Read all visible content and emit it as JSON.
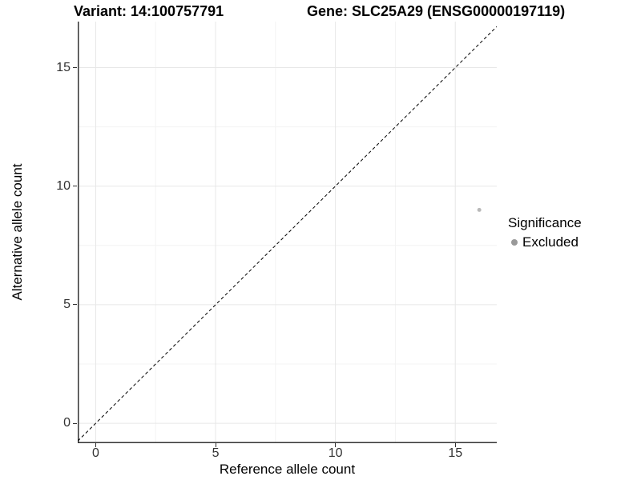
{
  "titles": {
    "variant": "Variant: 14:100757791",
    "gene": "Gene: SLC25A29 (ENSG00000197119)"
  },
  "legend": {
    "title": "Significance",
    "items": [
      {
        "label": "Excluded",
        "color": "#999999"
      }
    ]
  },
  "chart_data": {
    "type": "scatter",
    "title": "Variant: 14:100757791 — Gene: SLC25A29 (ENSG00000197119)",
    "xlabel": "Reference allele count",
    "ylabel": "Alternative allele count",
    "xlim": [
      -0.75,
      16.73
    ],
    "ylim": [
      -0.84,
      16.94
    ],
    "x_ticks": [
      0,
      5,
      10,
      15
    ],
    "y_ticks": [
      0,
      5,
      10,
      15
    ],
    "x_minor_ticks": [
      2.5,
      7.5,
      12.5
    ],
    "y_minor_ticks": [
      2.5,
      7.5,
      12.5
    ],
    "grid": true,
    "legend_position": "right",
    "series": [
      {
        "name": "Excluded",
        "color": "#b9b9b9",
        "points": [
          {
            "x": 16,
            "y": 9
          }
        ]
      }
    ],
    "reference_line": {
      "kind": "identity",
      "slope": 1,
      "intercept": 0,
      "style": "dashed",
      "color": "#000000"
    }
  },
  "colors": {
    "grid_major": "#e7e7e7",
    "grid_minor": "#f3f3f3",
    "axis_line": "#333333",
    "tick_text": "#333333",
    "legend_dot": "#999999",
    "point": "#b9b9b9"
  }
}
